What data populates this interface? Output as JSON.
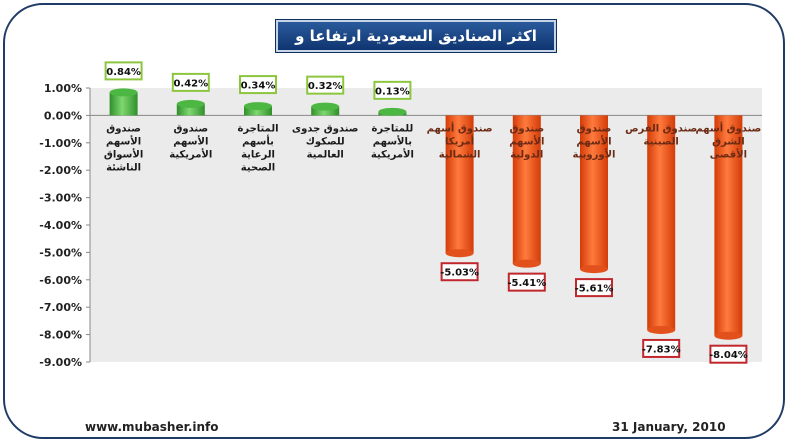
{
  "chart_data": {
    "type": "bar",
    "title": "اكثر الصناديق السعودية ارتفاعا و تراجعا",
    "categories": [
      "صندوق الأسهم الأسواق الناشئة",
      "صندوق الأسهم الأمريكية",
      "المتاجرة بأسهم الرعاية الصحية",
      "صندوق جدوى للصكوك العالمية",
      "للمتاجرة بالأسهم الأمريكية",
      "صندوق أسهم أمريكا الشمالية",
      "صندوق الأسهم الدولية",
      "صندوق الأسهم الأوروبية",
      "صندوق الفرص الصينية",
      "صندوق أسهم الشرق الأقصى"
    ],
    "values": [
      0.84,
      0.42,
      0.34,
      0.32,
      0.13,
      -5.03,
      -5.41,
      -5.61,
      -7.83,
      -8.04
    ],
    "value_labels": [
      "0.84%",
      "0.42%",
      "0.34%",
      "0.32%",
      "0.13%",
      "-5.03%",
      "-5.41%",
      "-5.61%",
      "-7.83%",
      "-8.04%"
    ],
    "ylim": [
      -9,
      1
    ],
    "yticks": [
      "1.00%",
      "0.00%",
      "-1.00%",
      "-2.00%",
      "-3.00%",
      "-4.00%",
      "-5.00%",
      "-6.00%",
      "-7.00%",
      "-8.00%",
      "-9.00%"
    ],
    "ytick_values": [
      1,
      0,
      -1,
      -2,
      -3,
      -4,
      -5,
      -6,
      -7,
      -8,
      -9
    ],
    "grid": false,
    "legend": "none",
    "colors": {
      "positive": "#3aa935",
      "negative": "#f04e12",
      "positive_label_border": "#8cc63f",
      "negative_label_border": "#c0272d",
      "plot_bg": "#ebebeb"
    }
  },
  "footer": {
    "source": "www.mubasher.info",
    "date": "31 January, 2010"
  }
}
